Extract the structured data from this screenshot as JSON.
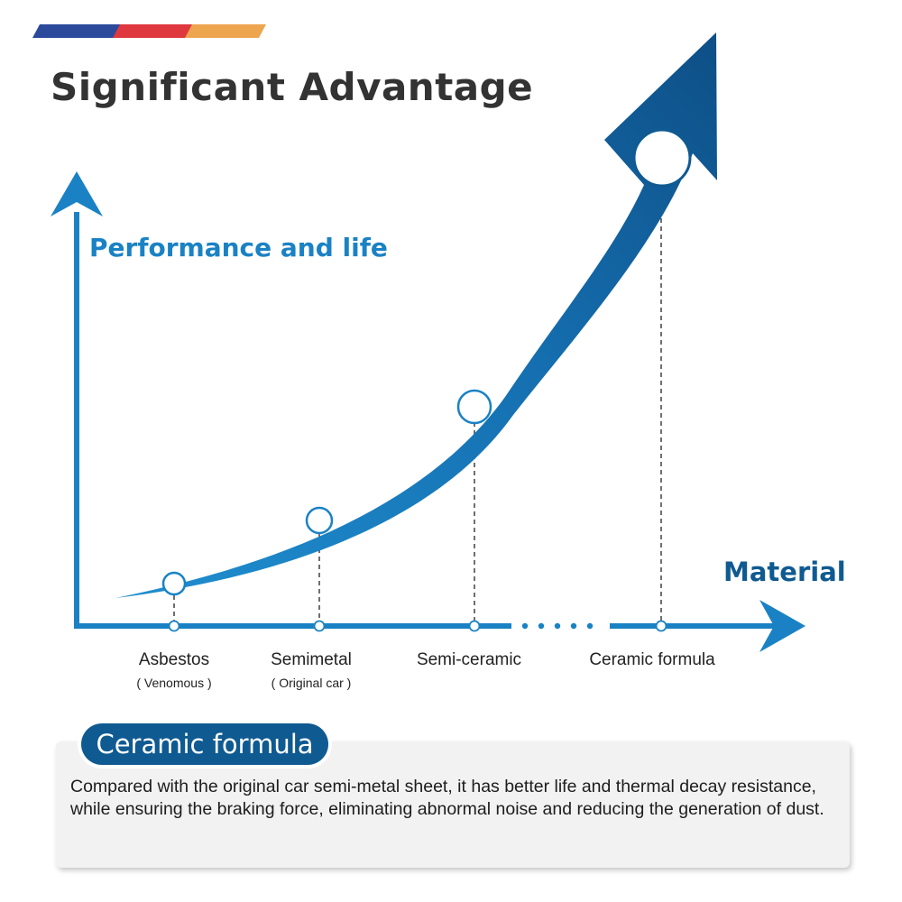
{
  "title": "Significant Advantage",
  "colors": {
    "primary": "#1a82c4",
    "dark": "#0f5a91",
    "stripe_blue": "#2b4a9c",
    "stripe_red": "#e0383f",
    "stripe_orange": "#eea54f",
    "title_text": "#333333"
  },
  "diagram": {
    "y_axis_label": "Performance and life",
    "x_axis_label": "Material",
    "categories": [
      {
        "name": "Asbestos",
        "note": "( Venomous )"
      },
      {
        "name": "Semimetal",
        "note": "( Original car )"
      },
      {
        "name": "Semi-ceramic",
        "note": ""
      },
      {
        "name": "Ceramic formula",
        "note": ""
      }
    ],
    "trend_icon": "rising-curve-arrow-icon"
  },
  "info_card": {
    "title": "Ceramic formula",
    "body": "Compared with the original car semi-metal sheet, it has better life and thermal decay resistance, while ensuring the braking force, eliminating abnormal noise and reducing the generation of dust."
  }
}
